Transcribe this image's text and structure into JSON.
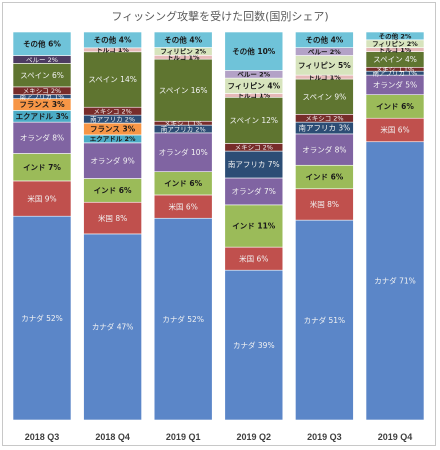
{
  "chart_data": {
    "type": "bar",
    "stacked": true,
    "percent_stacked": true,
    "title": "フィッシング攻撃を受けた回数(国別シェア)",
    "categories": [
      "2018 Q3",
      "2018 Q4",
      "2019 Q1",
      "2019 Q2",
      "2019 Q3",
      "2019 Q4"
    ],
    "ylim": [
      0,
      100
    ],
    "grid": false,
    "legend": "none",
    "stacks": [
      [
        {
          "label": "カナダ 52%",
          "value": 52,
          "color": "#5b86c8"
        },
        {
          "label": "米国 9%",
          "value": 9,
          "color": "#c0504d"
        },
        {
          "label": "インド 7%",
          "value": 7,
          "color": "#9bbb59"
        },
        {
          "label": "オランダ 8%",
          "value": 8,
          "color": "#8064a2"
        },
        {
          "label": "エクアドル 3%",
          "value": 3,
          "color": "#4bacc6"
        },
        {
          "label": "フランス 3%",
          "value": 3,
          "color": "#f79646"
        },
        {
          "label": "南アフリカ 1%",
          "value": 1,
          "color": "#2c4d75"
        },
        {
          "label": "メキシコ 2%",
          "value": 2,
          "color": "#772c2a"
        },
        {
          "label": "スペイン 6%",
          "value": 6,
          "color": "#5f7530"
        },
        {
          "label": "ペルー 2%",
          "value": 2,
          "color": "#4d3b62"
        },
        {
          "label": "その他 6%",
          "value": 6,
          "color": "#6fc3d9"
        }
      ],
      [
        {
          "label": "カナダ 47%",
          "value": 47,
          "color": "#5b86c8"
        },
        {
          "label": "米国 8%",
          "value": 8,
          "color": "#c0504d"
        },
        {
          "label": "インド 6%",
          "value": 6,
          "color": "#9bbb59"
        },
        {
          "label": "オランダ 9%",
          "value": 9,
          "color": "#8064a2"
        },
        {
          "label": "エクアドル 2%",
          "value": 2,
          "color": "#4bacc6"
        },
        {
          "label": "フランス 3%",
          "value": 3,
          "color": "#f79646"
        },
        {
          "label": "南アフリカ 2%",
          "value": 2,
          "color": "#2c4d75"
        },
        {
          "label": "メキシコ 2%",
          "value": 2,
          "color": "#772c2a"
        },
        {
          "label": "スペイン 14%",
          "value": 14,
          "color": "#5f7530"
        },
        {
          "label": "トルコ 1%",
          "value": 1,
          "color": "#e6b9b8"
        },
        {
          "label": "その他 4%",
          "value": 4,
          "color": "#6fc3d9"
        }
      ],
      [
        {
          "label": "カナダ 52%",
          "value": 52,
          "color": "#5b86c8"
        },
        {
          "label": "米国 6%",
          "value": 6,
          "color": "#c0504d"
        },
        {
          "label": "インド 6%",
          "value": 6,
          "color": "#9bbb59"
        },
        {
          "label": "オランダ 10%",
          "value": 10,
          "color": "#8064a2"
        },
        {
          "label": "南アフリカ 2%",
          "value": 2,
          "color": "#2c4d75"
        },
        {
          "label": "メキシコ 1%",
          "value": 1,
          "color": "#772c2a"
        },
        {
          "label": "スペイン 16%",
          "value": 16,
          "color": "#5f7530"
        },
        {
          "label": "トルコ 1%",
          "value": 1,
          "color": "#e6b9b8"
        },
        {
          "label": "フィリピン 2%",
          "value": 2,
          "color": "#d7e4bd"
        },
        {
          "label": "その他 4%",
          "value": 4,
          "color": "#6fc3d9"
        }
      ],
      [
        {
          "label": "カナダ 39%",
          "value": 39,
          "color": "#5b86c8"
        },
        {
          "label": "米国 6%",
          "value": 6,
          "color": "#c0504d"
        },
        {
          "label": "インド 11%",
          "value": 11,
          "color": "#9bbb59"
        },
        {
          "label": "オランダ 7%",
          "value": 7,
          "color": "#8064a2"
        },
        {
          "label": "南アフリカ 7%",
          "value": 7,
          "color": "#2c4d75"
        },
        {
          "label": "メキシコ 2%",
          "value": 2,
          "color": "#772c2a"
        },
        {
          "label": "スペイン 12%",
          "value": 12,
          "color": "#5f7530"
        },
        {
          "label": "トルコ 1%",
          "value": 1,
          "color": "#e6b9b8"
        },
        {
          "label": "フィリピン 4%",
          "value": 4,
          "color": "#d7e4bd"
        },
        {
          "label": "ベルー 2%",
          "value": 2,
          "color": "#b3a2c7"
        },
        {
          "label": "その他 10%",
          "value": 10,
          "color": "#6fc3d9"
        }
      ],
      [
        {
          "label": "カナダ 51%",
          "value": 51,
          "color": "#5b86c8"
        },
        {
          "label": "米国 8%",
          "value": 8,
          "color": "#c0504d"
        },
        {
          "label": "インド 6%",
          "value": 6,
          "color": "#9bbb59"
        },
        {
          "label": "オランダ 8%",
          "value": 8,
          "color": "#8064a2"
        },
        {
          "label": "南アフリカ 3%",
          "value": 3,
          "color": "#2c4d75"
        },
        {
          "label": "メキシコ 2%",
          "value": 2,
          "color": "#772c2a"
        },
        {
          "label": "スペイン 9%",
          "value": 9,
          "color": "#5f7530"
        },
        {
          "label": "トルコ 1%",
          "value": 1,
          "color": "#e6b9b8"
        },
        {
          "label": "フィリピン 5%",
          "value": 5,
          "color": "#d7e4bd"
        },
        {
          "label": "ベルー 2%",
          "value": 2,
          "color": "#b3a2c7"
        },
        {
          "label": "その他 4%",
          "value": 4,
          "color": "#6fc3d9"
        }
      ],
      [
        {
          "label": "カナダ 71%",
          "value": 71,
          "color": "#5b86c8"
        },
        {
          "label": "米国 6%",
          "value": 6,
          "color": "#c0504d"
        },
        {
          "label": "インド 6%",
          "value": 6,
          "color": "#9bbb59"
        },
        {
          "label": "オランダ 5%",
          "value": 5,
          "color": "#8064a2"
        },
        {
          "label": "南アフリカ 1%",
          "value": 1,
          "color": "#2c4d75"
        },
        {
          "label": "メキシコ 1%",
          "value": 1,
          "color": "#772c2a"
        },
        {
          "label": "スペイン 4%",
          "value": 4,
          "color": "#5f7530"
        },
        {
          "label": "トルコ 1%",
          "value": 1,
          "color": "#e6b9b8"
        },
        {
          "label": "フィリピン 2%",
          "value": 2,
          "color": "#d7e4bd"
        },
        {
          "label": "その他 2%",
          "value": 2,
          "color": "#6fc3d9"
        }
      ]
    ]
  }
}
